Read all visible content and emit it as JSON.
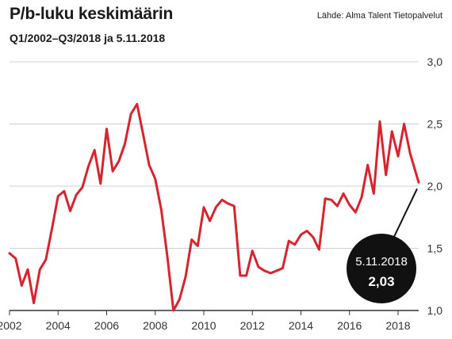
{
  "header": {
    "title": "P/b-luku keskimäärin",
    "subtitle": "Q1/2002–Q3/2018 ja 5.11.2018",
    "source": "Lähde: Alma Talent Tietopalvelut"
  },
  "annotation": {
    "date": "5.11.2018",
    "value": "2,03"
  },
  "colors": {
    "line": "#d9232d",
    "grid": "#cfcfcf",
    "axis": "#333333",
    "bubble": "#111111"
  },
  "chart_data": {
    "type": "line",
    "title": "P/b-luku keskimäärin",
    "subtitle": "Q1/2002–Q3/2018 ja 5.11.2018",
    "ylim": [
      1.0,
      3.0
    ],
    "yticks": [
      1.0,
      1.5,
      2.0,
      2.5,
      3.0
    ],
    "ytick_labels": [
      "1,0",
      "1,5",
      "2,0",
      "2,5",
      "3,0"
    ],
    "xlim": [
      2002.0,
      2018.85
    ],
    "xticks": [
      2002,
      2004,
      2006,
      2008,
      2010,
      2012,
      2014,
      2016,
      2018
    ],
    "xtick_labels": [
      "2002",
      "2004",
      "2006",
      "2008",
      "2010",
      "2012",
      "2014",
      "2016",
      "2018"
    ],
    "grid": true,
    "series": [
      {
        "x": [
          2002.0,
          2002.25,
          2002.5,
          2002.75,
          2003.0,
          2003.25,
          2003.5,
          2003.75,
          2004.0,
          2004.25,
          2004.5,
          2004.75,
          2005.0,
          2005.25,
          2005.5,
          2005.75,
          2006.0,
          2006.25,
          2006.5,
          2006.75,
          2007.0,
          2007.25,
          2007.5,
          2007.75,
          2008.0,
          2008.25,
          2008.5,
          2008.75,
          2009.0,
          2009.25,
          2009.5,
          2009.75,
          2010.0,
          2010.25,
          2010.5,
          2010.75,
          2011.0,
          2011.25,
          2011.5,
          2011.75,
          2012.0,
          2012.25,
          2012.5,
          2012.75,
          2013.0,
          2013.25,
          2013.5,
          2013.75,
          2014.0,
          2014.25,
          2014.5,
          2014.75,
          2015.0,
          2015.25,
          2015.5,
          2015.75,
          2016.0,
          2016.25,
          2016.5,
          2016.75,
          2017.0,
          2017.25,
          2017.5,
          2017.75,
          2018.0,
          2018.25,
          2018.5,
          2018.85
        ],
        "values": [
          1.46,
          1.42,
          1.2,
          1.33,
          1.06,
          1.33,
          1.41,
          1.66,
          1.92,
          1.96,
          1.8,
          1.93,
          1.99,
          2.16,
          2.29,
          2.02,
          2.46,
          2.12,
          2.2,
          2.34,
          2.58,
          2.66,
          2.42,
          2.17,
          2.06,
          1.81,
          1.43,
          1.0,
          1.09,
          1.27,
          1.57,
          1.52,
          1.83,
          1.72,
          1.83,
          1.89,
          1.86,
          1.84,
          1.28,
          1.28,
          1.48,
          1.35,
          1.32,
          1.3,
          1.32,
          1.34,
          1.56,
          1.53,
          1.61,
          1.64,
          1.59,
          1.49,
          1.9,
          1.89,
          1.84,
          1.94,
          1.85,
          1.79,
          1.91,
          2.17,
          1.94,
          2.52,
          2.09,
          2.44,
          2.24,
          2.5,
          2.26,
          2.03
        ]
      }
    ]
  }
}
